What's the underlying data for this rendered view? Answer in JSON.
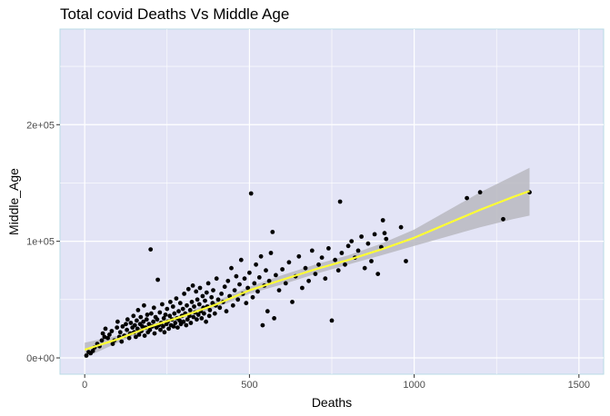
{
  "chart_data": {
    "type": "scatter",
    "title": "Total covid Deaths Vs Middle Age",
    "xlabel": "Deaths",
    "ylabel": "Middle_Age",
    "xlim": [
      -75,
      1575
    ],
    "ylim": [
      -14000,
      282000
    ],
    "x_ticks": [
      0,
      500,
      1000,
      1500
    ],
    "x_tick_labels": [
      "0",
      "500",
      "1000",
      "1500"
    ],
    "y_ticks": [
      0,
      100000,
      200000
    ],
    "y_tick_labels": [
      "0e+00",
      "1e+05",
      "2e+05"
    ],
    "grid": true,
    "legend": "none",
    "colors": {
      "panel_background": "#e3e4f6",
      "panel_border": "#b8dbe6",
      "grid_line": "#ffffff",
      "point": "#000000",
      "trend_line": "#ffff33",
      "confidence_band": "#b9b9bf"
    },
    "trend": {
      "method": "loess",
      "x": [
        0,
        100,
        200,
        300,
        400,
        500,
        600,
        700,
        800,
        900,
        1000,
        1100,
        1200,
        1300,
        1350
      ],
      "y": [
        7000,
        16000,
        27000,
        36000,
        46000,
        58000,
        67000,
        76000,
        84000,
        93000,
        103000,
        115000,
        127000,
        138000,
        143000
      ],
      "lower": [
        0,
        13000,
        25000,
        34000,
        43000,
        55000,
        63000,
        72000,
        80000,
        88000,
        96000,
        104000,
        112000,
        119000,
        122000
      ],
      "upper": [
        13000,
        19000,
        29000,
        38000,
        49000,
        61000,
        71000,
        80000,
        88000,
        98000,
        110000,
        126000,
        142000,
        156000,
        163000
      ]
    },
    "points": [
      [
        5,
        2000
      ],
      [
        12,
        5000
      ],
      [
        18,
        4000
      ],
      [
        25,
        6000
      ],
      [
        30,
        9000
      ],
      [
        38,
        12000
      ],
      [
        45,
        10000
      ],
      [
        52,
        15000
      ],
      [
        55,
        21000
      ],
      [
        60,
        18000
      ],
      [
        63,
        25000
      ],
      [
        70,
        17000
      ],
      [
        75,
        20000
      ],
      [
        82,
        23000
      ],
      [
        85,
        12000
      ],
      [
        90,
        15000
      ],
      [
        98,
        26000
      ],
      [
        100,
        31000
      ],
      [
        105,
        18000
      ],
      [
        108,
        22000
      ],
      [
        112,
        14000
      ],
      [
        115,
        27000
      ],
      [
        120,
        19000
      ],
      [
        125,
        29000
      ],
      [
        128,
        24000
      ],
      [
        130,
        33000
      ],
      [
        135,
        17000
      ],
      [
        138,
        21000
      ],
      [
        140,
        30000
      ],
      [
        145,
        26000
      ],
      [
        148,
        36000
      ],
      [
        150,
        22000
      ],
      [
        152,
        28000
      ],
      [
        155,
        18000
      ],
      [
        158,
        32000
      ],
      [
        160,
        25000
      ],
      [
        162,
        41000
      ],
      [
        165,
        20000
      ],
      [
        168,
        29000
      ],
      [
        170,
        35000
      ],
      [
        172,
        23000
      ],
      [
        175,
        27000
      ],
      [
        178,
        31000
      ],
      [
        180,
        45000
      ],
      [
        182,
        19000
      ],
      [
        185,
        26000
      ],
      [
        188,
        33000
      ],
      [
        190,
        37000
      ],
      [
        192,
        22000
      ],
      [
        195,
        29000
      ],
      [
        198,
        24000
      ],
      [
        200,
        93000
      ],
      [
        202,
        38000
      ],
      [
        205,
        27000
      ],
      [
        208,
        31000
      ],
      [
        210,
        43000
      ],
      [
        212,
        21000
      ],
      [
        215,
        35000
      ],
      [
        218,
        26000
      ],
      [
        220,
        33000
      ],
      [
        222,
        67000
      ],
      [
        225,
        28000
      ],
      [
        228,
        39000
      ],
      [
        230,
        24000
      ],
      [
        232,
        30000
      ],
      [
        235,
        46000
      ],
      [
        238,
        27000
      ],
      [
        240,
        34000
      ],
      [
        242,
        22000
      ],
      [
        245,
        37000
      ],
      [
        248,
        29000
      ],
      [
        250,
        42000
      ],
      [
        252,
        31000
      ],
      [
        255,
        25000
      ],
      [
        258,
        36000
      ],
      [
        260,
        48000
      ],
      [
        262,
        28000
      ],
      [
        265,
        33000
      ],
      [
        268,
        44000
      ],
      [
        270,
        27000
      ],
      [
        272,
        38000
      ],
      [
        275,
        30000
      ],
      [
        278,
        51000
      ],
      [
        280,
        34000
      ],
      [
        282,
        26000
      ],
      [
        285,
        40000
      ],
      [
        288,
        32000
      ],
      [
        290,
        47000
      ],
      [
        292,
        29000
      ],
      [
        295,
        36000
      ],
      [
        298,
        42000
      ],
      [
        300,
        31000
      ],
      [
        302,
        55000
      ],
      [
        305,
        38000
      ],
      [
        308,
        28000
      ],
      [
        310,
        45000
      ],
      [
        312,
        33000
      ],
      [
        315,
        59000
      ],
      [
        318,
        36000
      ],
      [
        320,
        41000
      ],
      [
        322,
        30000
      ],
      [
        325,
        48000
      ],
      [
        328,
        62000
      ],
      [
        330,
        35000
      ],
      [
        332,
        44000
      ],
      [
        335,
        39000
      ],
      [
        338,
        57000
      ],
      [
        340,
        33000
      ],
      [
        342,
        50000
      ],
      [
        345,
        37000
      ],
      [
        348,
        46000
      ],
      [
        350,
        60000
      ],
      [
        352,
        40000
      ],
      [
        355,
        34000
      ],
      [
        358,
        53000
      ],
      [
        360,
        43000
      ],
      [
        362,
        38000
      ],
      [
        365,
        49000
      ],
      [
        368,
        31000
      ],
      [
        370,
        56000
      ],
      [
        372,
        44000
      ],
      [
        375,
        64000
      ],
      [
        378,
        36000
      ],
      [
        380,
        41000
      ],
      [
        385,
        52000
      ],
      [
        388,
        47000
      ],
      [
        390,
        58000
      ],
      [
        395,
        38000
      ],
      [
        398,
        45000
      ],
      [
        400,
        68000
      ],
      [
        405,
        50000
      ],
      [
        410,
        43000
      ],
      [
        415,
        55000
      ],
      [
        420,
        48000
      ],
      [
        425,
        61000
      ],
      [
        430,
        40000
      ],
      [
        435,
        66000
      ],
      [
        440,
        53000
      ],
      [
        445,
        77000
      ],
      [
        450,
        45000
      ],
      [
        455,
        58000
      ],
      [
        460,
        70000
      ],
      [
        465,
        50000
      ],
      [
        470,
        63000
      ],
      [
        475,
        84000
      ],
      [
        480,
        55000
      ],
      [
        485,
        68000
      ],
      [
        490,
        47000
      ],
      [
        495,
        60000
      ],
      [
        500,
        73000
      ],
      [
        505,
        141000
      ],
      [
        510,
        52000
      ],
      [
        515,
        64000
      ],
      [
        520,
        80000
      ],
      [
        525,
        57000
      ],
      [
        530,
        69000
      ],
      [
        535,
        87000
      ],
      [
        540,
        28000
      ],
      [
        545,
        62000
      ],
      [
        550,
        75000
      ],
      [
        555,
        40000
      ],
      [
        560,
        66000
      ],
      [
        565,
        90000
      ],
      [
        570,
        108000
      ],
      [
        575,
        34000
      ],
      [
        580,
        71000
      ],
      [
        590,
        58000
      ],
      [
        600,
        76000
      ],
      [
        610,
        64000
      ],
      [
        620,
        82000
      ],
      [
        630,
        48000
      ],
      [
        640,
        70000
      ],
      [
        650,
        87000
      ],
      [
        660,
        60000
      ],
      [
        670,
        77000
      ],
      [
        680,
        66000
      ],
      [
        690,
        92000
      ],
      [
        700,
        72000
      ],
      [
        710,
        80000
      ],
      [
        720,
        86000
      ],
      [
        730,
        68000
      ],
      [
        740,
        94000
      ],
      [
        750,
        32000
      ],
      [
        760,
        84000
      ],
      [
        770,
        75000
      ],
      [
        775,
        134000
      ],
      [
        780,
        90000
      ],
      [
        790,
        80000
      ],
      [
        800,
        96000
      ],
      [
        810,
        100000
      ],
      [
        820,
        86000
      ],
      [
        830,
        92000
      ],
      [
        840,
        104000
      ],
      [
        850,
        77000
      ],
      [
        860,
        98000
      ],
      [
        870,
        83000
      ],
      [
        880,
        106000
      ],
      [
        890,
        72000
      ],
      [
        900,
        95000
      ],
      [
        905,
        118000
      ],
      [
        910,
        107000
      ],
      [
        915,
        102000
      ],
      [
        960,
        112000
      ],
      [
        975,
        83000
      ],
      [
        1160,
        137000
      ],
      [
        1200,
        142000
      ],
      [
        1270,
        119000
      ],
      [
        1350,
        142000
      ]
    ]
  }
}
